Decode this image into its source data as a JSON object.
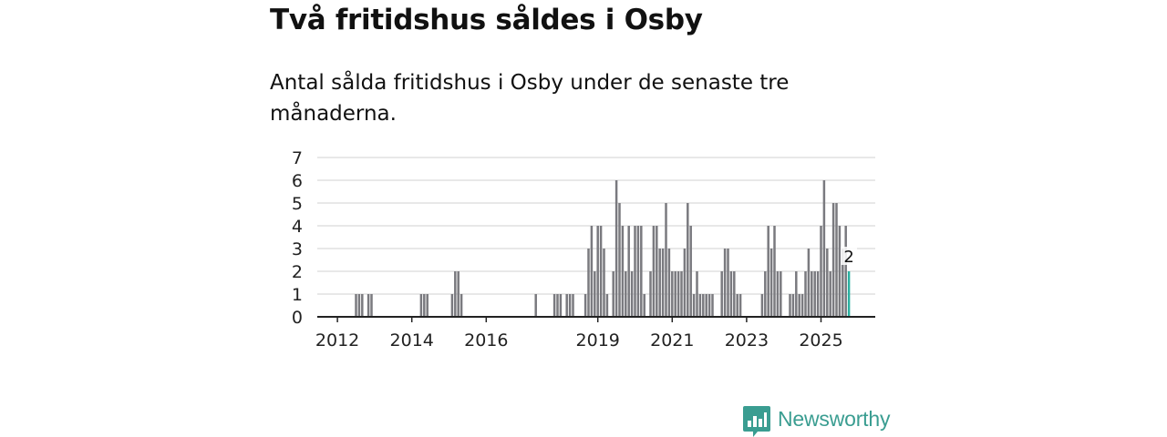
{
  "title": "Två fritidshus såldes i Osby",
  "subtitle": "Antal sålda fritidshus i Osby under de senaste tre månaderna.",
  "brand": {
    "name": "Newsworthy",
    "logo_icon": "bar-chart-speech-bubble-icon"
  },
  "colors": {
    "bar": "#7a7a7f",
    "highlight": "#2ab0a0",
    "grid": "#d9d9d9",
    "axis": "#222222",
    "brand": "#3a9d91"
  },
  "chart_data": {
    "type": "bar",
    "title": "Två fritidshus såldes i Osby",
    "xlabel": "",
    "ylabel": "",
    "ylim": [
      0,
      7
    ],
    "xlim": [
      "2011-07",
      "2026-07"
    ],
    "y_ticks": [
      0,
      1,
      2,
      3,
      4,
      5,
      6,
      7
    ],
    "x_ticks": [
      {
        "label": "2012",
        "month": "2012-01"
      },
      {
        "label": "2014",
        "month": "2014-01"
      },
      {
        "label": "2016",
        "month": "2016-01"
      },
      {
        "label": "2019",
        "month": "2019-01"
      },
      {
        "label": "2021",
        "month": "2021-01"
      },
      {
        "label": "2023",
        "month": "2023-01"
      },
      {
        "label": "2025",
        "month": "2025-01"
      }
    ],
    "grid": true,
    "annotation": {
      "label": "2",
      "month": "2025-10"
    },
    "highlight_month": "2025-10",
    "series": [
      {
        "name": "Antal sålda fritidshus",
        "points": [
          {
            "m": "2012-07",
            "v": 1
          },
          {
            "m": "2012-08",
            "v": 1
          },
          {
            "m": "2012-09",
            "v": 1
          },
          {
            "m": "2012-11",
            "v": 1
          },
          {
            "m": "2012-12",
            "v": 1
          },
          {
            "m": "2014-04",
            "v": 1
          },
          {
            "m": "2014-05",
            "v": 1
          },
          {
            "m": "2014-06",
            "v": 1
          },
          {
            "m": "2015-02",
            "v": 1
          },
          {
            "m": "2015-03",
            "v": 2
          },
          {
            "m": "2015-04",
            "v": 2
          },
          {
            "m": "2015-05",
            "v": 1
          },
          {
            "m": "2017-05",
            "v": 1
          },
          {
            "m": "2017-11",
            "v": 1
          },
          {
            "m": "2017-12",
            "v": 1
          },
          {
            "m": "2018-01",
            "v": 1
          },
          {
            "m": "2018-03",
            "v": 1
          },
          {
            "m": "2018-04",
            "v": 1
          },
          {
            "m": "2018-05",
            "v": 1
          },
          {
            "m": "2018-09",
            "v": 1
          },
          {
            "m": "2018-10",
            "v": 3
          },
          {
            "m": "2018-11",
            "v": 4
          },
          {
            "m": "2018-12",
            "v": 2
          },
          {
            "m": "2019-01",
            "v": 4
          },
          {
            "m": "2019-02",
            "v": 4
          },
          {
            "m": "2019-03",
            "v": 3
          },
          {
            "m": "2019-04",
            "v": 1
          },
          {
            "m": "2019-06",
            "v": 2
          },
          {
            "m": "2019-07",
            "v": 6
          },
          {
            "m": "2019-08",
            "v": 5
          },
          {
            "m": "2019-09",
            "v": 4
          },
          {
            "m": "2019-10",
            "v": 2
          },
          {
            "m": "2019-11",
            "v": 4
          },
          {
            "m": "2019-12",
            "v": 2
          },
          {
            "m": "2020-01",
            "v": 4
          },
          {
            "m": "2020-02",
            "v": 4
          },
          {
            "m": "2020-03",
            "v": 4
          },
          {
            "m": "2020-04",
            "v": 1
          },
          {
            "m": "2020-06",
            "v": 2
          },
          {
            "m": "2020-07",
            "v": 4
          },
          {
            "m": "2020-08",
            "v": 4
          },
          {
            "m": "2020-09",
            "v": 3
          },
          {
            "m": "2020-10",
            "v": 3
          },
          {
            "m": "2020-11",
            "v": 5
          },
          {
            "m": "2020-12",
            "v": 3
          },
          {
            "m": "2021-01",
            "v": 2
          },
          {
            "m": "2021-02",
            "v": 2
          },
          {
            "m": "2021-03",
            "v": 2
          },
          {
            "m": "2021-04",
            "v": 2
          },
          {
            "m": "2021-05",
            "v": 3
          },
          {
            "m": "2021-06",
            "v": 5
          },
          {
            "m": "2021-07",
            "v": 4
          },
          {
            "m": "2021-08",
            "v": 1
          },
          {
            "m": "2021-09",
            "v": 2
          },
          {
            "m": "2021-10",
            "v": 1
          },
          {
            "m": "2021-11",
            "v": 1
          },
          {
            "m": "2021-12",
            "v": 1
          },
          {
            "m": "2022-01",
            "v": 1
          },
          {
            "m": "2022-02",
            "v": 1
          },
          {
            "m": "2022-05",
            "v": 2
          },
          {
            "m": "2022-06",
            "v": 3
          },
          {
            "m": "2022-07",
            "v": 3
          },
          {
            "m": "2022-08",
            "v": 2
          },
          {
            "m": "2022-09",
            "v": 2
          },
          {
            "m": "2022-10",
            "v": 1
          },
          {
            "m": "2022-11",
            "v": 1
          },
          {
            "m": "2023-06",
            "v": 1
          },
          {
            "m": "2023-07",
            "v": 2
          },
          {
            "m": "2023-08",
            "v": 4
          },
          {
            "m": "2023-09",
            "v": 3
          },
          {
            "m": "2023-10",
            "v": 4
          },
          {
            "m": "2023-11",
            "v": 2
          },
          {
            "m": "2023-12",
            "v": 2
          },
          {
            "m": "2024-03",
            "v": 1
          },
          {
            "m": "2024-04",
            "v": 1
          },
          {
            "m": "2024-05",
            "v": 2
          },
          {
            "m": "2024-06",
            "v": 1
          },
          {
            "m": "2024-07",
            "v": 1
          },
          {
            "m": "2024-08",
            "v": 2
          },
          {
            "m": "2024-09",
            "v": 3
          },
          {
            "m": "2024-10",
            "v": 2
          },
          {
            "m": "2024-11",
            "v": 2
          },
          {
            "m": "2024-12",
            "v": 2
          },
          {
            "m": "2025-01",
            "v": 4
          },
          {
            "m": "2025-02",
            "v": 6
          },
          {
            "m": "2025-03",
            "v": 3
          },
          {
            "m": "2025-04",
            "v": 2
          },
          {
            "m": "2025-05",
            "v": 5
          },
          {
            "m": "2025-06",
            "v": 5
          },
          {
            "m": "2025-07",
            "v": 4
          },
          {
            "m": "2025-08",
            "v": 3
          },
          {
            "m": "2025-09",
            "v": 4
          },
          {
            "m": "2025-10",
            "v": 2
          }
        ]
      }
    ]
  }
}
